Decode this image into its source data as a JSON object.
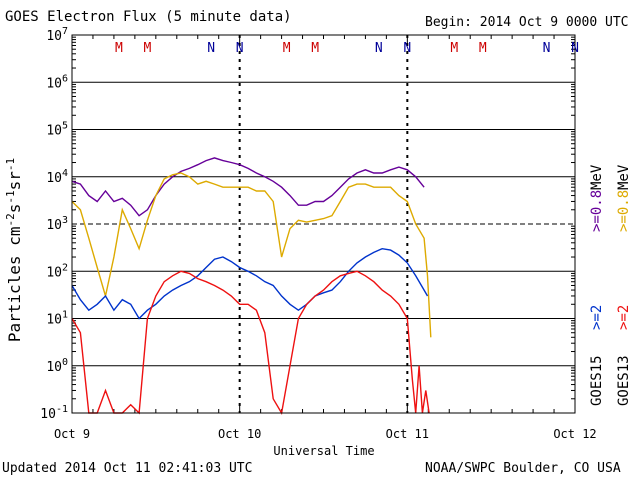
{
  "header": {
    "title": "GOES Electron Flux (5 minute data)",
    "begin": "Begin: 2014 Oct 9 0000 UTC"
  },
  "footer": {
    "updated": "Updated 2014 Oct 11 02:41:03 UTC",
    "credit": "NOAA/SWPC Boulder, CO USA"
  },
  "colors": {
    "ge08_goes13": "#ddaa00",
    "ge08_goes15": "#660099",
    "ge2_goes13": "#ee1111",
    "ge2_goes15": "#0033cc",
    "marker_M": "#cc0000",
    "marker_N": "#000099"
  },
  "chart_data": {
    "type": "line",
    "title": "GOES Electron Flux (5 minute data)",
    "xlabel": "Universal Time",
    "ylabel": "Particles cm-2s-1sr-1",
    "yscale": "log",
    "ylim": [
      0.1,
      10000000
    ],
    "xlim_days": [
      0,
      3
    ],
    "x_tick_labels": [
      "Oct 9",
      "Oct 10",
      "Oct 11",
      "Oct 12"
    ],
    "y_tick_exponents": [
      -1,
      0,
      1,
      2,
      3,
      4,
      5,
      6,
      7
    ],
    "y_tick_base": "10",
    "dashed_gridline_exponent": 3,
    "day_markers": [
      {
        "label": "M",
        "x": 0.28
      },
      {
        "label": "M",
        "x": 0.45
      },
      {
        "label": "N",
        "x": 0.83
      },
      {
        "label": "N",
        "x": 1.0
      },
      {
        "label": "M",
        "x": 1.28
      },
      {
        "label": "M",
        "x": 1.45
      },
      {
        "label": "N",
        "x": 1.83
      },
      {
        "label": "N",
        "x": 2.0
      },
      {
        "label": "M",
        "x": 2.28
      },
      {
        "label": "M",
        "x": 2.45
      },
      {
        "label": "N",
        "x": 2.83
      },
      {
        "label": "N",
        "x": 3.0
      }
    ],
    "legend": {
      "energy_ge08": ">=0.8",
      "energy_ge2": ">=2",
      "unit": "MeV",
      "sat15": "GOES15",
      "sat13": "GOES13"
    },
    "series": [
      {
        "name": "GOES15 >=0.8 MeV",
        "color": "#660099",
        "x": [
          0.0,
          0.05,
          0.1,
          0.15,
          0.2,
          0.25,
          0.3,
          0.35,
          0.4,
          0.45,
          0.5,
          0.55,
          0.6,
          0.65,
          0.7,
          0.75,
          0.8,
          0.85,
          0.9,
          0.95,
          1.0,
          1.05,
          1.1,
          1.15,
          1.2,
          1.25,
          1.3,
          1.35,
          1.4,
          1.45,
          1.5,
          1.55,
          1.6,
          1.65,
          1.7,
          1.75,
          1.8,
          1.85,
          1.9,
          1.95,
          2.0,
          2.05,
          2.1
        ],
        "y": [
          8000,
          7000,
          4000,
          3000,
          5000,
          3000,
          3500,
          2500,
          1500,
          2000,
          4000,
          7000,
          10000,
          13000,
          15000,
          18000,
          22000,
          25000,
          22000,
          20000,
          18000,
          15000,
          12000,
          10000,
          8000,
          6000,
          4000,
          2500,
          2500,
          3000,
          3000,
          4000,
          6000,
          9000,
          12000,
          14000,
          12000,
          12000,
          14000,
          16000,
          14000,
          10000,
          6000
        ]
      },
      {
        "name": "GOES13 >=0.8 MeV",
        "color": "#ddaa00",
        "x": [
          0.0,
          0.05,
          0.1,
          0.15,
          0.2,
          0.25,
          0.3,
          0.35,
          0.4,
          0.45,
          0.5,
          0.55,
          0.6,
          0.65,
          0.7,
          0.75,
          0.8,
          0.85,
          0.9,
          0.95,
          1.0,
          1.05,
          1.1,
          1.15,
          1.2,
          1.25,
          1.3,
          1.35,
          1.4,
          1.45,
          1.5,
          1.55,
          1.6,
          1.65,
          1.7,
          1.75,
          1.8,
          1.85,
          1.9,
          1.95,
          2.0,
          2.05,
          2.1,
          2.12,
          2.14
        ],
        "y": [
          3000,
          2000,
          500,
          120,
          30,
          200,
          2000,
          800,
          300,
          1200,
          4000,
          9000,
          11000,
          12000,
          10000,
          7000,
          8000,
          7000,
          6000,
          6000,
          6000,
          6000,
          5000,
          5000,
          3000,
          200,
          800,
          1200,
          1100,
          1200,
          1300,
          1500,
          3000,
          6000,
          7000,
          7000,
          6000,
          6000,
          6000,
          4000,
          3000,
          1000,
          500,
          80,
          4
        ]
      },
      {
        "name": "GOES15 >=2 MeV",
        "color": "#0033cc",
        "x": [
          0.0,
          0.05,
          0.1,
          0.15,
          0.2,
          0.25,
          0.3,
          0.35,
          0.4,
          0.45,
          0.5,
          0.55,
          0.6,
          0.65,
          0.7,
          0.75,
          0.8,
          0.85,
          0.9,
          0.95,
          1.0,
          1.05,
          1.1,
          1.15,
          1.2,
          1.25,
          1.3,
          1.35,
          1.4,
          1.45,
          1.5,
          1.55,
          1.6,
          1.65,
          1.7,
          1.75,
          1.8,
          1.85,
          1.9,
          1.95,
          2.0,
          2.05,
          2.1,
          2.12
        ],
        "y": [
          50,
          25,
          15,
          20,
          30,
          15,
          25,
          20,
          10,
          15,
          20,
          30,
          40,
          50,
          60,
          80,
          120,
          180,
          200,
          160,
          120,
          100,
          80,
          60,
          50,
          30,
          20,
          15,
          20,
          30,
          35,
          40,
          60,
          100,
          150,
          200,
          250,
          300,
          280,
          220,
          150,
          80,
          40,
          30
        ]
      },
      {
        "name": "GOES13 >=2 MeV",
        "color": "#ee1111",
        "x": [
          0.0,
          0.05,
          0.1,
          0.15,
          0.2,
          0.25,
          0.3,
          0.35,
          0.4,
          0.45,
          0.5,
          0.55,
          0.6,
          0.65,
          0.7,
          0.75,
          0.8,
          0.85,
          0.9,
          0.95,
          1.0,
          1.05,
          1.1,
          1.15,
          1.2,
          1.25,
          1.3,
          1.35,
          1.4,
          1.45,
          1.5,
          1.55,
          1.6,
          1.65,
          1.7,
          1.75,
          1.8,
          1.85,
          1.9,
          1.95,
          2.0,
          2.03,
          2.05,
          2.07,
          2.09,
          2.11,
          2.13
        ],
        "y": [
          10,
          5,
          0.1,
          0.1,
          0.3,
          0.1,
          0.1,
          0.15,
          0.1,
          10,
          30,
          60,
          80,
          100,
          90,
          70,
          60,
          50,
          40,
          30,
          20,
          20,
          15,
          5,
          0.2,
          0.1,
          1,
          10,
          20,
          30,
          40,
          60,
          80,
          90,
          100,
          80,
          60,
          40,
          30,
          20,
          10,
          0.5,
          0.1,
          1,
          0.1,
          0.3,
          0.1
        ]
      }
    ]
  }
}
